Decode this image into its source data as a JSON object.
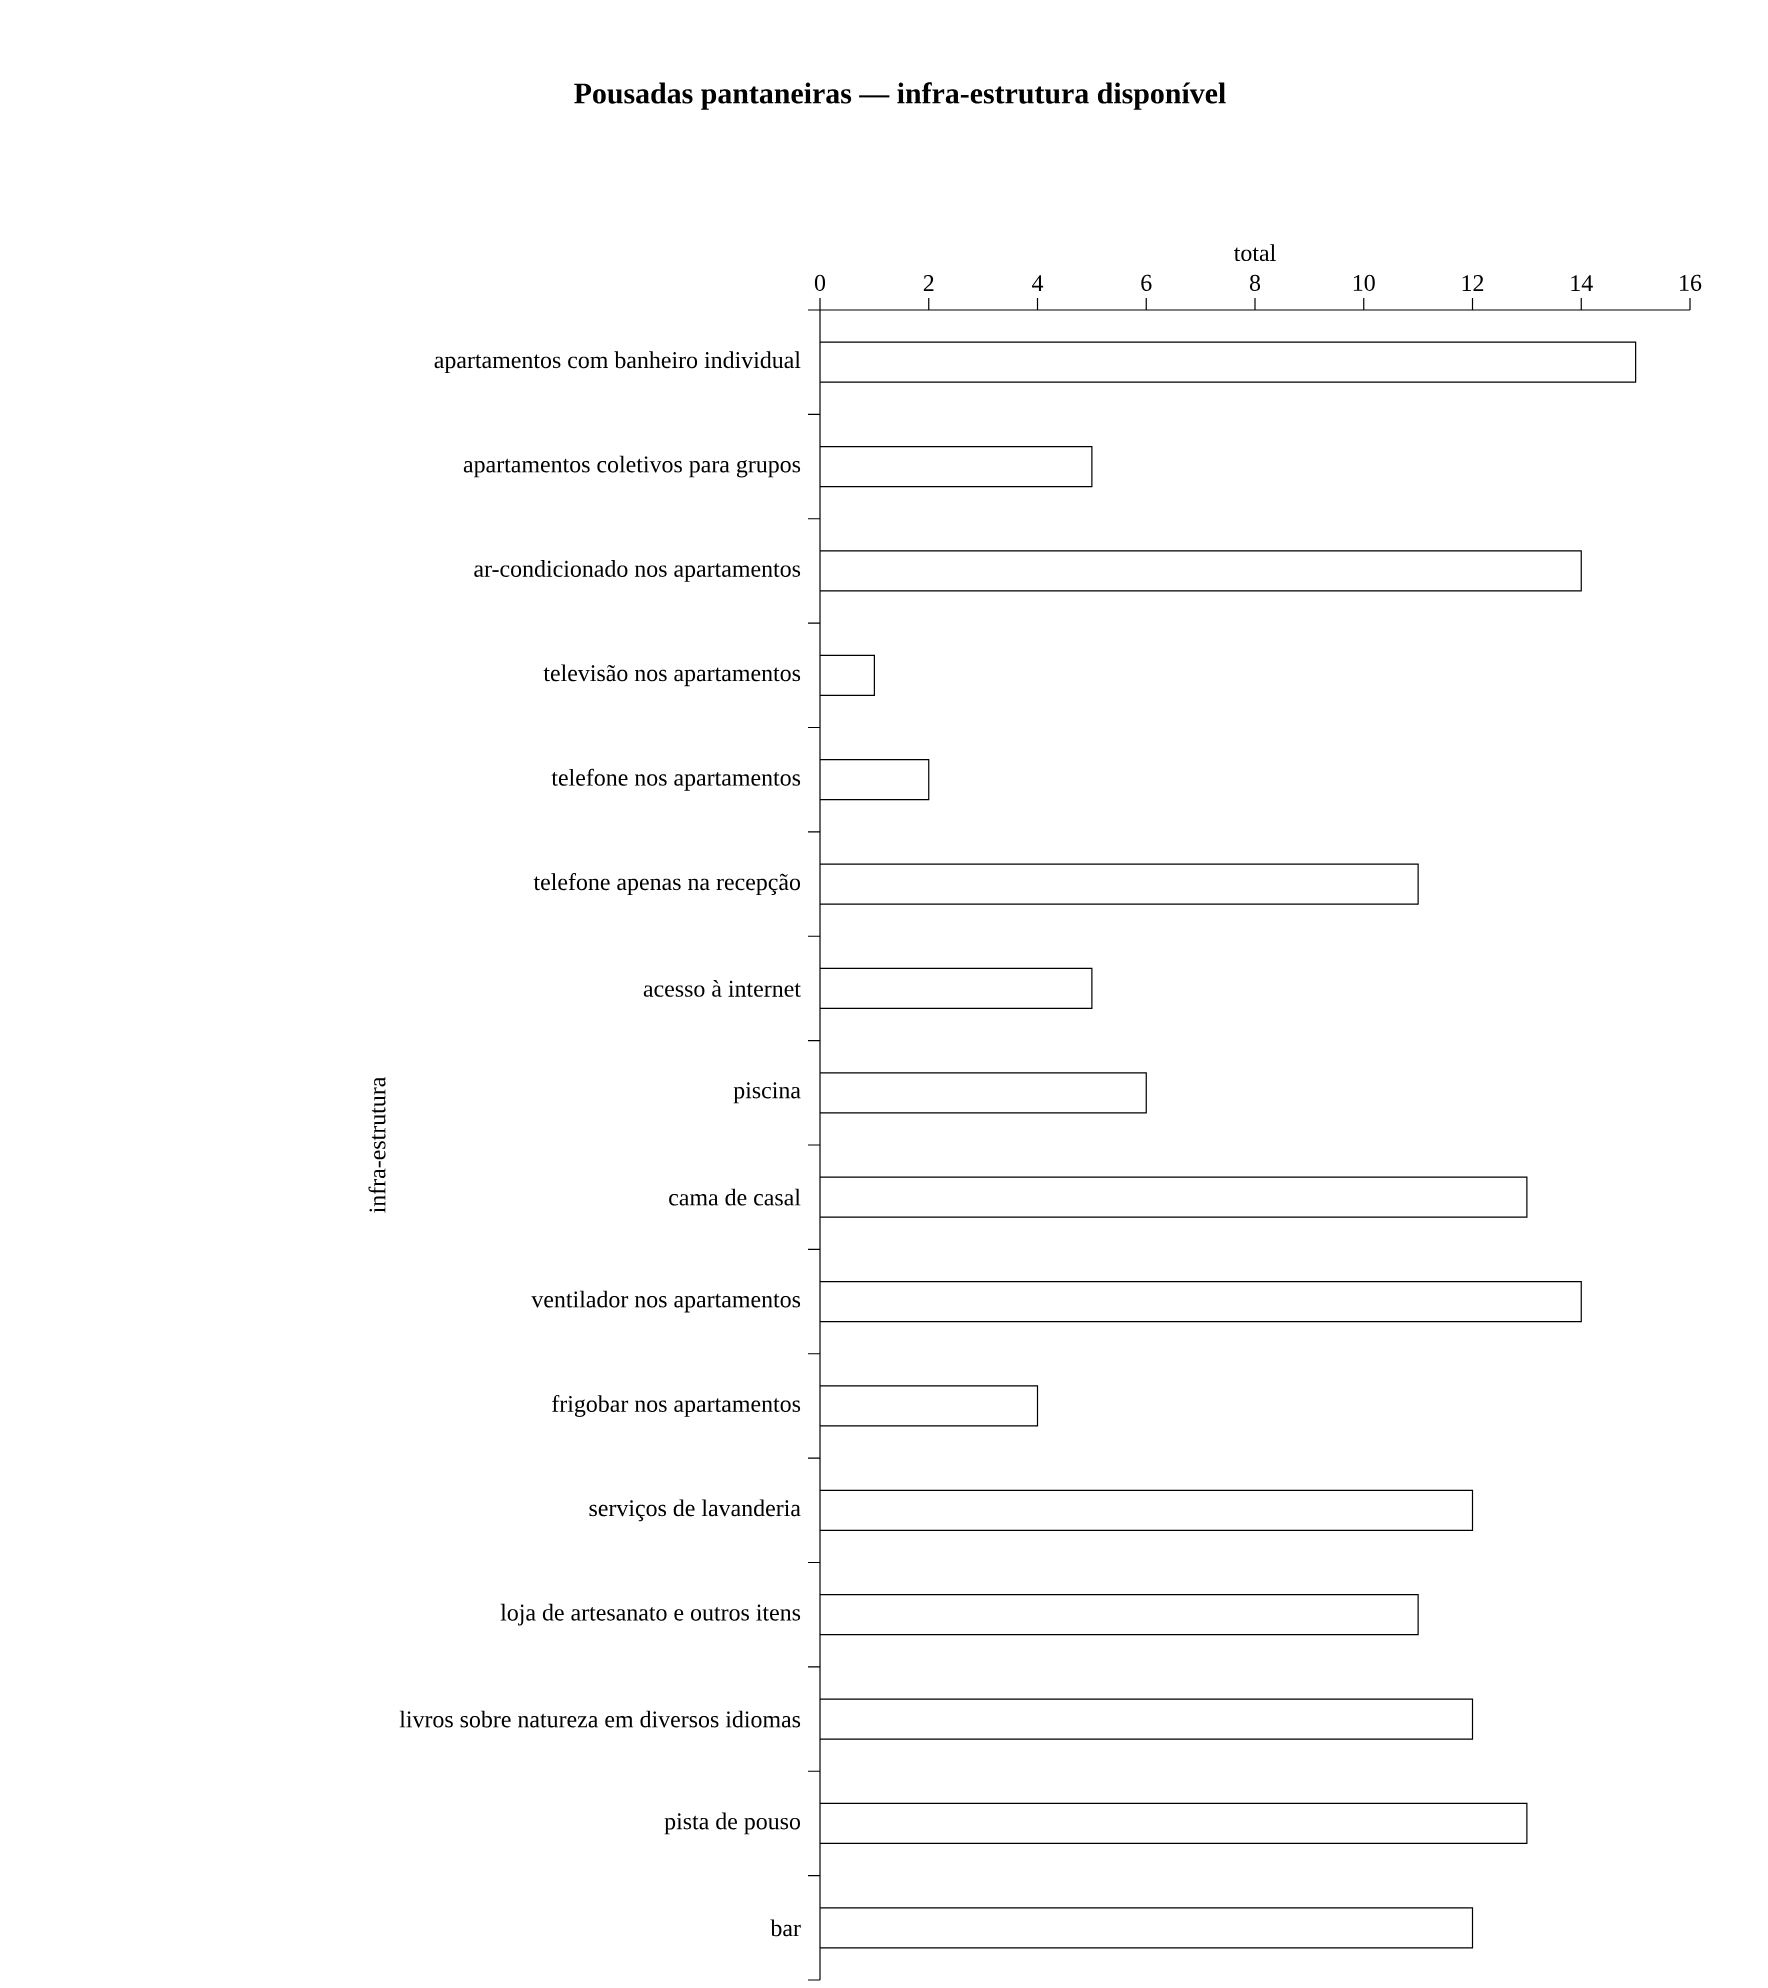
{
  "chart_data": {
    "type": "bar",
    "orientation": "horizontal",
    "title": "Pousadas pantaneiras — infra-estrutura disponível",
    "xlabel": "total",
    "ylabel": "infra-estrutura",
    "categories": [
      "apartamentos com banheiro individual",
      "apartamentos coletivos para grupos",
      "ar-condicionado nos apartamentos",
      "televisão nos apartamentos",
      "telefone nos apartamentos",
      "telefone apenas na recepção",
      "acesso à internet",
      "piscina",
      "cama de casal",
      "ventilador nos apartamentos",
      "frigobar nos apartamentos",
      "serviços de lavanderia",
      "loja de artesanato e outros itens",
      "livros sobre natureza em diversos idiomas",
      "pista de pouso",
      "bar"
    ],
    "values": [
      15,
      5,
      14,
      1,
      2,
      11,
      5,
      6,
      13,
      14,
      4,
      12,
      11,
      12,
      13,
      12
    ],
    "color": "#ffffff",
    "xlim": [
      0,
      16
    ],
    "xticks": [
      0,
      2,
      4,
      6,
      8,
      10,
      12,
      14,
      16
    ]
  }
}
